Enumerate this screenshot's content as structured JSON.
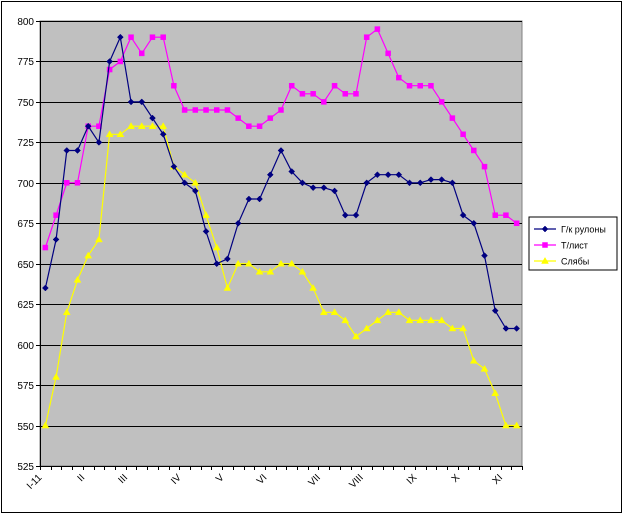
{
  "chart_data": {
    "type": "line",
    "ylim": [
      525,
      800
    ],
    "yticks": [
      525,
      550,
      575,
      600,
      625,
      650,
      675,
      700,
      725,
      750,
      775,
      800
    ],
    "month_labels": [
      {
        "label": "I-11",
        "index": 0
      },
      {
        "label": "II",
        "index": 4
      },
      {
        "label": "III",
        "index": 8
      },
      {
        "label": "IV",
        "index": 13
      },
      {
        "label": "V",
        "index": 17
      },
      {
        "label": "VI",
        "index": 21
      },
      {
        "label": "VII",
        "index": 26
      },
      {
        "label": "VIII",
        "index": 30
      },
      {
        "label": "IX",
        "index": 35
      },
      {
        "label": "X",
        "index": 39
      },
      {
        "label": "XI",
        "index": 43
      }
    ],
    "grid": true,
    "legend_position": "right",
    "plot_background": "#c0c0c0",
    "series": [
      {
        "name": "Г/к рулоны",
        "color": "#000080",
        "marker": "diamond",
        "values": [
          635,
          665,
          720,
          720,
          735,
          725,
          775,
          790,
          750,
          750,
          740,
          730,
          710,
          700,
          695,
          670,
          650,
          653,
          675,
          690,
          690,
          705,
          720,
          707,
          700,
          697,
          697,
          695,
          680,
          680,
          700,
          705,
          705,
          705,
          700,
          700,
          702,
          702,
          700,
          680,
          675,
          655,
          621,
          610,
          610
        ]
      },
      {
        "name": "Т/лист",
        "color": "#ff00ff",
        "marker": "square",
        "values": [
          660,
          680,
          700,
          700,
          735,
          735,
          770,
          775,
          790,
          780,
          790,
          790,
          760,
          745,
          745,
          745,
          745,
          745,
          740,
          735,
          735,
          740,
          745,
          760,
          755,
          755,
          750,
          760,
          755,
          755,
          790,
          795,
          780,
          765,
          760,
          760,
          760,
          750,
          740,
          730,
          720,
          710,
          680,
          680,
          675
        ]
      },
      {
        "name": "Слябы",
        "color": "#ffff00",
        "marker": "triangle",
        "values": [
          550,
          580,
          620,
          640,
          655,
          665,
          730,
          730,
          735,
          735,
          735,
          735,
          710,
          705,
          700,
          680,
          660,
          635,
          650,
          650,
          645,
          645,
          650,
          650,
          645,
          635,
          620,
          620,
          615,
          605,
          610,
          615,
          620,
          620,
          615,
          615,
          615,
          615,
          610,
          610,
          590,
          585,
          570,
          550,
          550
        ]
      }
    ]
  }
}
